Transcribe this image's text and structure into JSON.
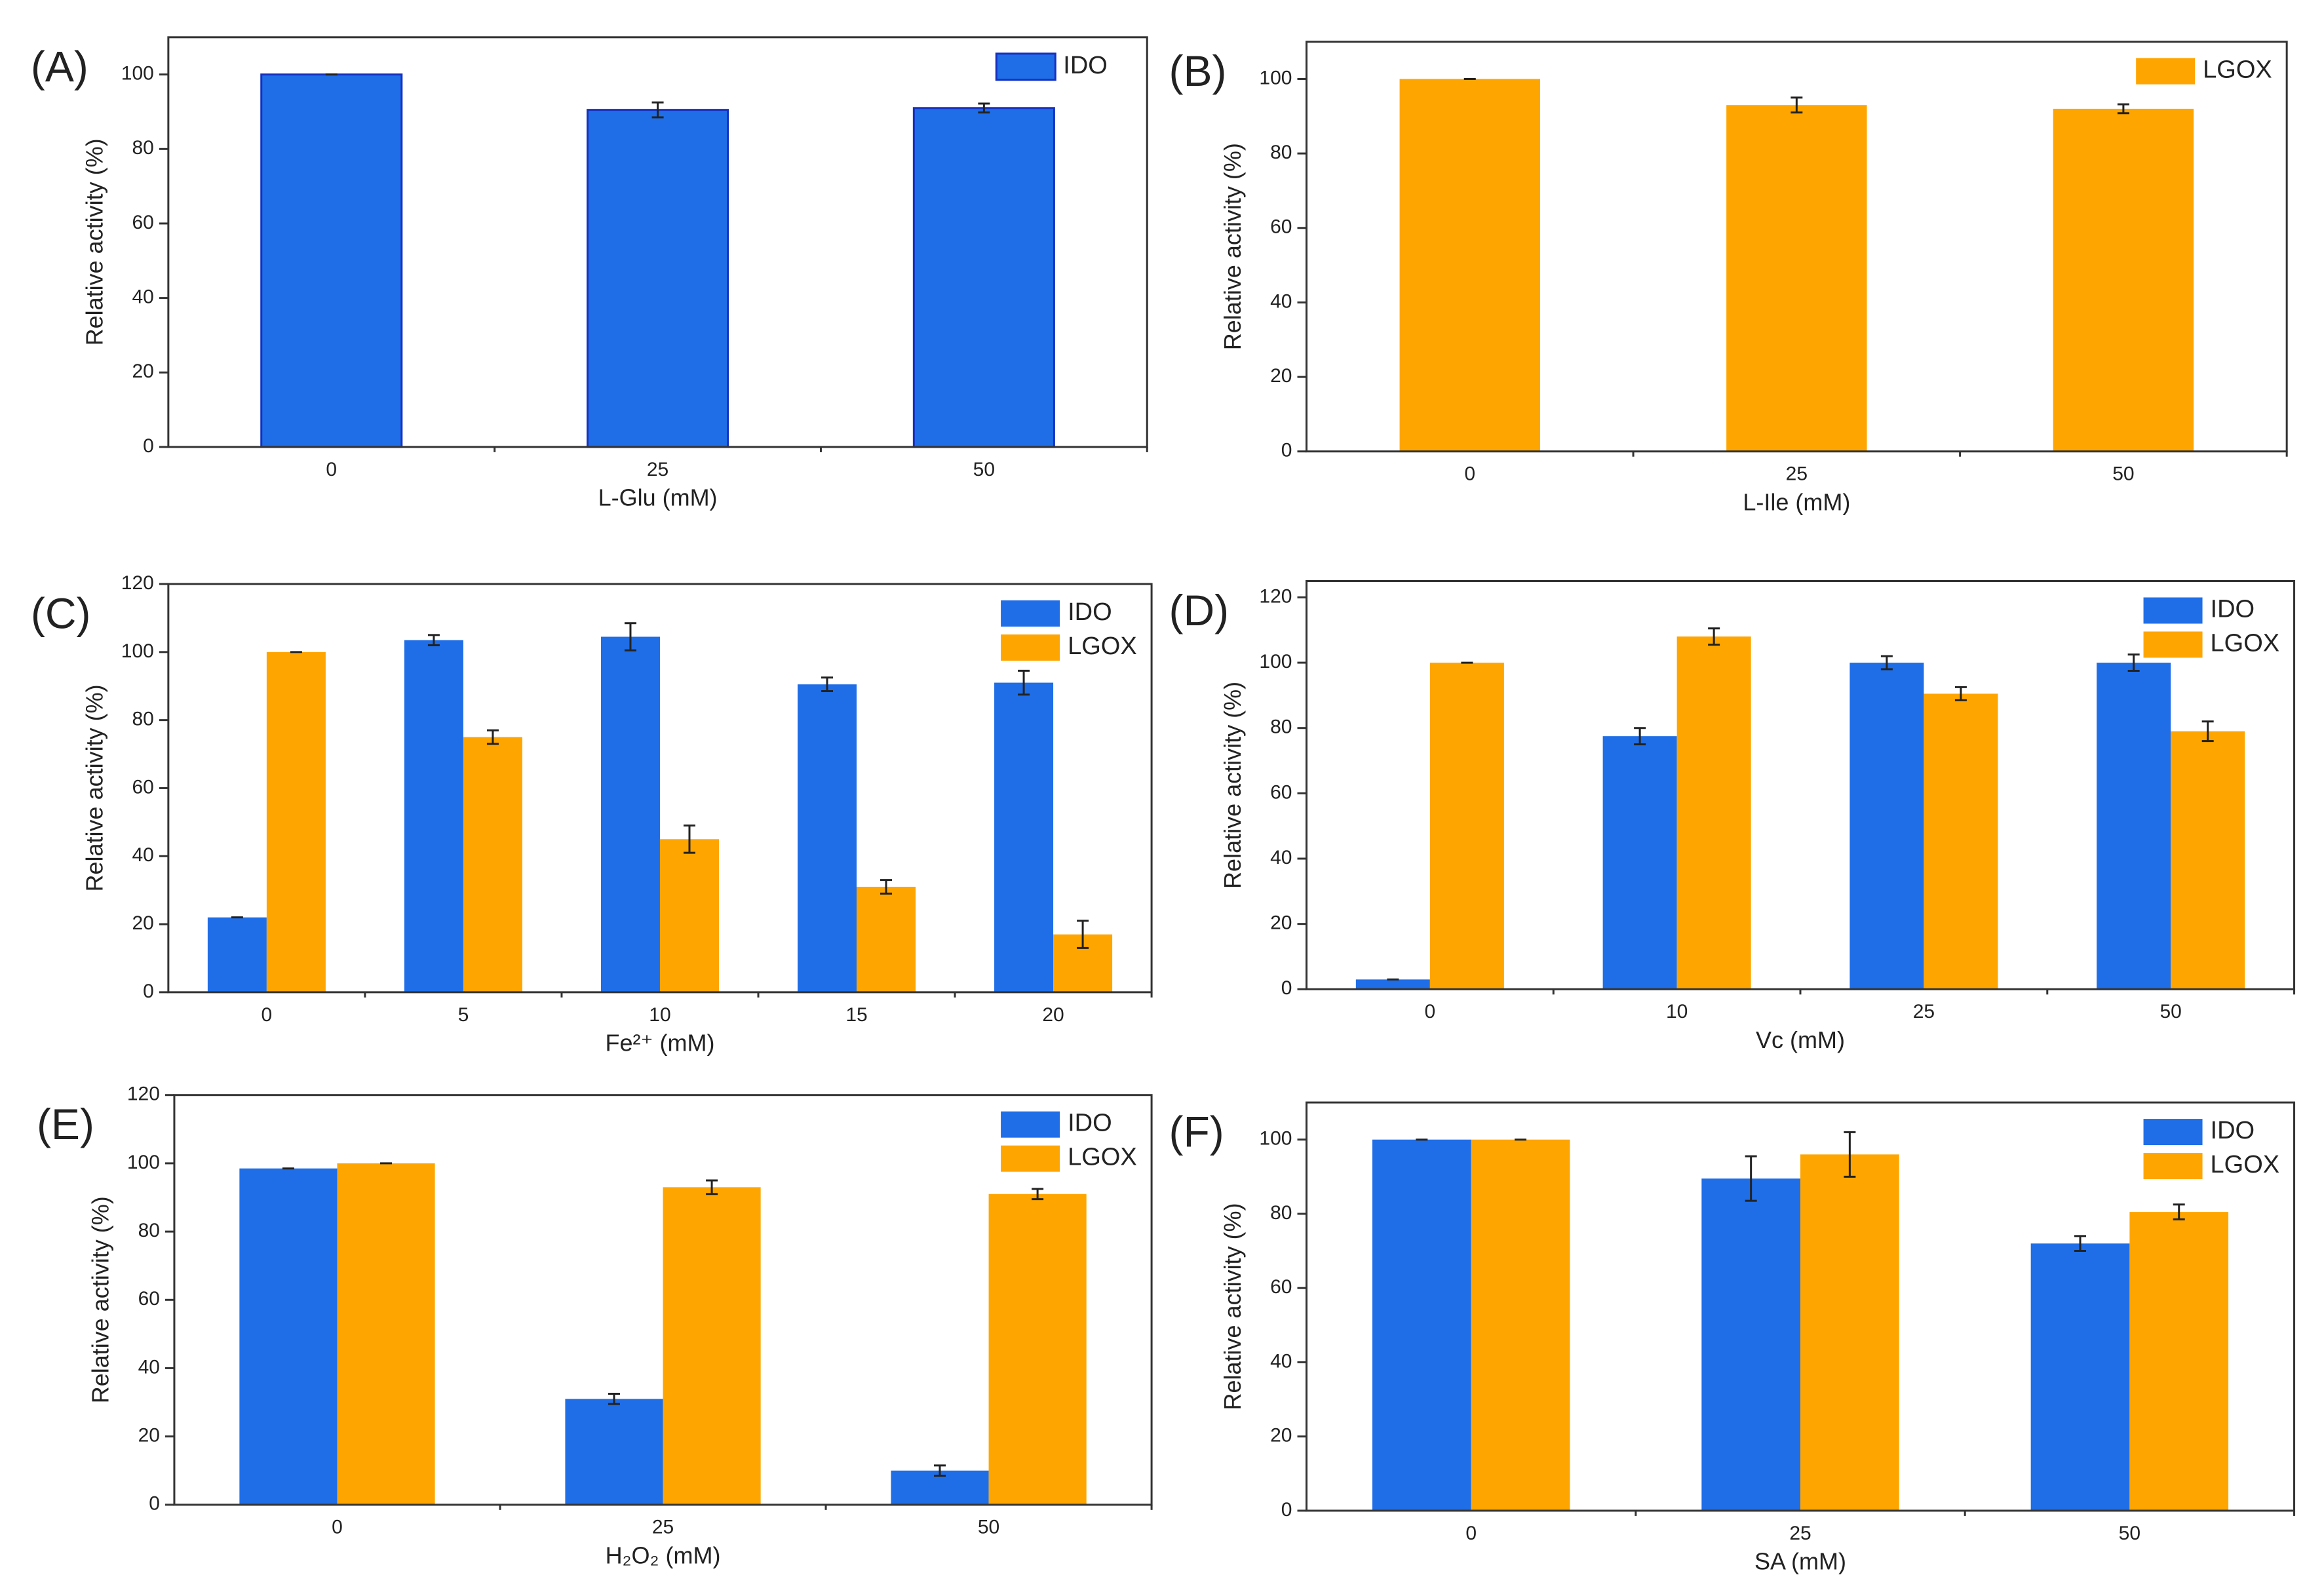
{
  "chart_data": [
    {
      "type": "bar",
      "label": "(A)",
      "x_label": "L-Glu (mM)",
      "y_label": "Relative activity (%)",
      "categories": [
        "0",
        "25",
        "50"
      ],
      "ylim": [
        0,
        110
      ],
      "yticks": [
        0,
        20,
        40,
        60,
        80,
        100
      ],
      "legend": "upper right",
      "series": [
        {
          "name": "IDO",
          "color": "#1f6ee8",
          "values": [
            100,
            90.5,
            91
          ],
          "errors": [
            0,
            2,
            1.2
          ]
        }
      ]
    },
    {
      "type": "bar",
      "label": "(B)",
      "x_label": "L-Ile (mM)",
      "y_label": "Relative activity (%)",
      "categories": [
        "0",
        "25",
        "50"
      ],
      "ylim": [
        0,
        110
      ],
      "yticks": [
        0,
        20,
        40,
        60,
        80,
        100
      ],
      "legend": "upper right",
      "series": [
        {
          "name": "LGOX",
          "color": "#ffa500",
          "values": [
            100,
            93,
            92
          ],
          "errors": [
            0,
            2,
            1.2
          ]
        }
      ]
    },
    {
      "type": "bar",
      "label": "(C)",
      "x_label": "Fe²⁺ (mM)",
      "y_label": "Relative activity (%)",
      "categories": [
        "0",
        "5",
        "10",
        "15",
        "20"
      ],
      "ylim": [
        0,
        120
      ],
      "yticks": [
        0,
        20,
        40,
        60,
        80,
        100,
        120
      ],
      "legend": "upper right",
      "series": [
        {
          "name": "IDO",
          "color": "#1f6ee8",
          "values": [
            22,
            103.5,
            104.5,
            90.5,
            91
          ],
          "errors": [
            0,
            1.5,
            4,
            2,
            3.5
          ]
        },
        {
          "name": "LGOX",
          "color": "#ffa500",
          "values": [
            100,
            75,
            45,
            31,
            17
          ],
          "errors": [
            0,
            2,
            4,
            2,
            4
          ]
        }
      ]
    },
    {
      "type": "bar",
      "label": "(D)",
      "x_label": "Vc (mM)",
      "y_label": "Relative activity (%)",
      "categories": [
        "0",
        "10",
        "25",
        "50"
      ],
      "ylim": [
        0,
        125
      ],
      "yticks": [
        0,
        20,
        40,
        60,
        80,
        100,
        120
      ],
      "legend": "upper right",
      "series": [
        {
          "name": "IDO",
          "color": "#1f6ee8",
          "values": [
            3,
            77.5,
            100,
            100
          ],
          "errors": [
            0,
            2.5,
            2,
            2.5
          ]
        },
        {
          "name": "LGOX",
          "color": "#ffa500",
          "values": [
            100,
            108,
            90.5,
            79
          ],
          "errors": [
            0,
            2.5,
            2,
            3
          ]
        }
      ]
    },
    {
      "type": "bar",
      "label": "(E)",
      "x_label": "H₂O₂ (mM)",
      "y_label": "Relative activity (%)",
      "categories": [
        "0",
        "25",
        "50"
      ],
      "ylim": [
        0,
        120
      ],
      "yticks": [
        0,
        20,
        40,
        60,
        80,
        100,
        120
      ],
      "legend": "upper right",
      "series": [
        {
          "name": "IDO",
          "color": "#1f6ee8",
          "values": [
            98.5,
            31,
            10
          ],
          "errors": [
            0,
            1.5,
            1.5
          ]
        },
        {
          "name": "LGOX",
          "color": "#ffa500",
          "values": [
            100,
            93,
            91
          ],
          "errors": [
            0,
            2,
            1.5
          ]
        }
      ]
    },
    {
      "type": "bar",
      "label": "(F)",
      "x_label": "SA (mM)",
      "y_label": "Relative activity (%)",
      "categories": [
        "0",
        "25",
        "50"
      ],
      "ylim": [
        0,
        110
      ],
      "yticks": [
        0,
        20,
        40,
        60,
        80,
        100
      ],
      "legend": "upper right",
      "series": [
        {
          "name": "IDO",
          "color": "#1f6ee8",
          "values": [
            100,
            89.5,
            72
          ],
          "errors": [
            0,
            6,
            2
          ]
        },
        {
          "name": "LGOX",
          "color": "#ffa500",
          "values": [
            100,
            96,
            80.5
          ],
          "errors": [
            0,
            6,
            2
          ]
        }
      ]
    }
  ]
}
